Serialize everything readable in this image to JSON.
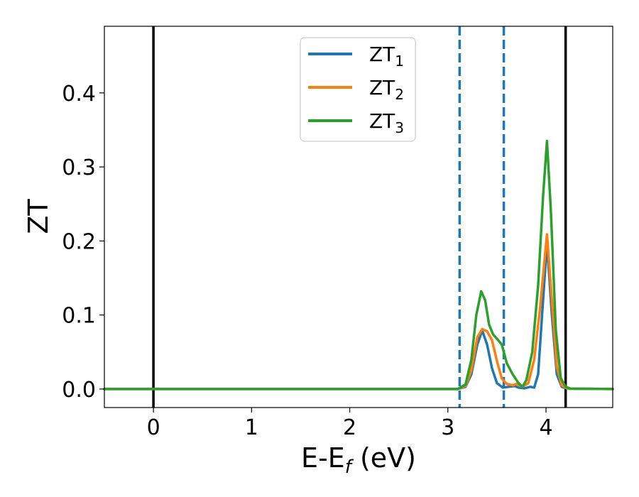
{
  "chart_data": {
    "type": "line",
    "xlabel_main": "E-E",
    "xlabel_sub": "f",
    "xlabel_unit": " (eV)",
    "ylabel": "ZT",
    "xlim": [
      -0.5,
      4.68
    ],
    "ylim": [
      -0.025,
      0.49
    ],
    "xticks": [
      0,
      1,
      2,
      3,
      4
    ],
    "xtick_labels": [
      "0",
      "1",
      "2",
      "3",
      "4"
    ],
    "yticks": [
      0.0,
      0.1,
      0.2,
      0.3,
      0.4
    ],
    "ytick_labels": [
      "0.0",
      "0.1",
      "0.2",
      "0.3",
      "0.4"
    ],
    "grid": false,
    "legend_position": "top-center",
    "vertical_lines": [
      {
        "x": 0.0,
        "style": "solid",
        "color": "#000000"
      },
      {
        "x": 4.2,
        "style": "solid",
        "color": "#000000"
      },
      {
        "x": 3.12,
        "style": "dashed",
        "color": "#1f77b4"
      },
      {
        "x": 3.57,
        "style": "dashed",
        "color": "#1f77b4"
      }
    ],
    "series": [
      {
        "name_main": "ZT",
        "name_sub": "1",
        "color": "#1f77b4",
        "points": [
          [
            -0.5,
            0
          ],
          [
            3.1,
            0
          ],
          [
            3.18,
            0.003
          ],
          [
            3.24,
            0.02
          ],
          [
            3.3,
            0.06
          ],
          [
            3.35,
            0.079
          ],
          [
            3.4,
            0.06
          ],
          [
            3.45,
            0.028
          ],
          [
            3.5,
            0.008
          ],
          [
            3.56,
            0.002
          ],
          [
            3.62,
            0.003
          ],
          [
            3.68,
            0.004
          ],
          [
            3.72,
            0.002
          ],
          [
            3.78,
            0.001
          ],
          [
            3.84,
            0.003
          ],
          [
            3.88,
            0.002
          ],
          [
            3.92,
            0.02
          ],
          [
            3.96,
            0.1
          ],
          [
            4.01,
            0.197
          ],
          [
            4.06,
            0.1
          ],
          [
            4.11,
            0.02
          ],
          [
            4.16,
            0.003
          ],
          [
            4.22,
            0.0005
          ],
          [
            4.68,
            0
          ]
        ]
      },
      {
        "name_main": "ZT",
        "name_sub": "2",
        "color": "#ff7f0e",
        "points": [
          [
            -0.5,
            0
          ],
          [
            3.1,
            0
          ],
          [
            3.18,
            0.004
          ],
          [
            3.24,
            0.025
          ],
          [
            3.3,
            0.07
          ],
          [
            3.35,
            0.081
          ],
          [
            3.4,
            0.078
          ],
          [
            3.45,
            0.066
          ],
          [
            3.5,
            0.038
          ],
          [
            3.55,
            0.014
          ],
          [
            3.6,
            0.007
          ],
          [
            3.66,
            0.005
          ],
          [
            3.7,
            0.007
          ],
          [
            3.76,
            0.003
          ],
          [
            3.82,
            0.008
          ],
          [
            3.88,
            0.04
          ],
          [
            3.94,
            0.11
          ],
          [
            4.01,
            0.209
          ],
          [
            4.06,
            0.12
          ],
          [
            4.11,
            0.03
          ],
          [
            4.16,
            0.005
          ],
          [
            4.22,
            0.0005
          ],
          [
            4.68,
            0
          ]
        ]
      },
      {
        "name_main": "ZT",
        "name_sub": "3",
        "color": "#2ca02c",
        "points": [
          [
            -0.5,
            0
          ],
          [
            3.1,
            0
          ],
          [
            3.18,
            0.006
          ],
          [
            3.24,
            0.04
          ],
          [
            3.29,
            0.1
          ],
          [
            3.34,
            0.132
          ],
          [
            3.38,
            0.12
          ],
          [
            3.42,
            0.087
          ],
          [
            3.46,
            0.074
          ],
          [
            3.5,
            0.068
          ],
          [
            3.55,
            0.06
          ],
          [
            3.6,
            0.035
          ],
          [
            3.66,
            0.02
          ],
          [
            3.72,
            0.008
          ],
          [
            3.76,
            0.003
          ],
          [
            3.8,
            0.012
          ],
          [
            3.86,
            0.05
          ],
          [
            3.92,
            0.14
          ],
          [
            3.97,
            0.26
          ],
          [
            4.01,
            0.335
          ],
          [
            4.05,
            0.24
          ],
          [
            4.1,
            0.08
          ],
          [
            4.15,
            0.015
          ],
          [
            4.2,
            0.003
          ],
          [
            4.25,
            0.0005
          ],
          [
            4.68,
            0
          ]
        ]
      }
    ]
  }
}
